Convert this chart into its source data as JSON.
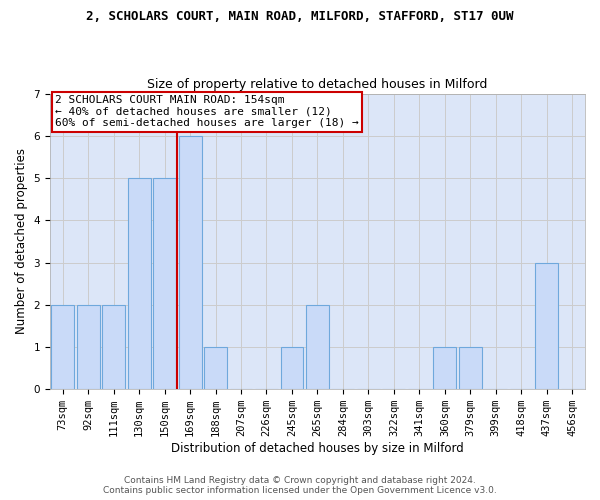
{
  "title": "2, SCHOLARS COURT, MAIN ROAD, MILFORD, STAFFORD, ST17 0UW",
  "subtitle": "Size of property relative to detached houses in Milford",
  "xlabel": "Distribution of detached houses by size in Milford",
  "ylabel": "Number of detached properties",
  "categories": [
    "73sqm",
    "92sqm",
    "111sqm",
    "130sqm",
    "150sqm",
    "169sqm",
    "188sqm",
    "207sqm",
    "226sqm",
    "245sqm",
    "265sqm",
    "284sqm",
    "303sqm",
    "322sqm",
    "341sqm",
    "360sqm",
    "379sqm",
    "399sqm",
    "418sqm",
    "437sqm",
    "456sqm"
  ],
  "values": [
    2,
    2,
    2,
    5,
    5,
    6,
    1,
    0,
    0,
    1,
    2,
    0,
    0,
    0,
    0,
    1,
    1,
    0,
    0,
    3,
    0
  ],
  "bar_color": "#c9daf8",
  "bar_edgecolor": "#6fa8dc",
  "bar_linewidth": 0.8,
  "ref_line_x": 4.5,
  "ref_line_color": "#cc0000",
  "annotation_line1": "2 SCHOLARS COURT MAIN ROAD: 154sqm",
  "annotation_line2": "← 40% of detached houses are smaller (12)",
  "annotation_line3": "60% of semi-detached houses are larger (18) →",
  "annotation_box_facecolor": "#ffffff",
  "annotation_box_edgecolor": "#cc0000",
  "ylim": [
    0,
    7
  ],
  "yticks": [
    0,
    1,
    2,
    3,
    4,
    5,
    6,
    7
  ],
  "grid_color": "#cccccc",
  "bg_color": "#dce6f8",
  "footer1": "Contains HM Land Registry data © Crown copyright and database right 2024.",
  "footer2": "Contains public sector information licensed under the Open Government Licence v3.0.",
  "title_fontsize": 9,
  "subtitle_fontsize": 9,
  "axis_label_fontsize": 8.5,
  "tick_fontsize": 7.5,
  "annotation_fontsize": 8,
  "footer_fontsize": 6.5
}
